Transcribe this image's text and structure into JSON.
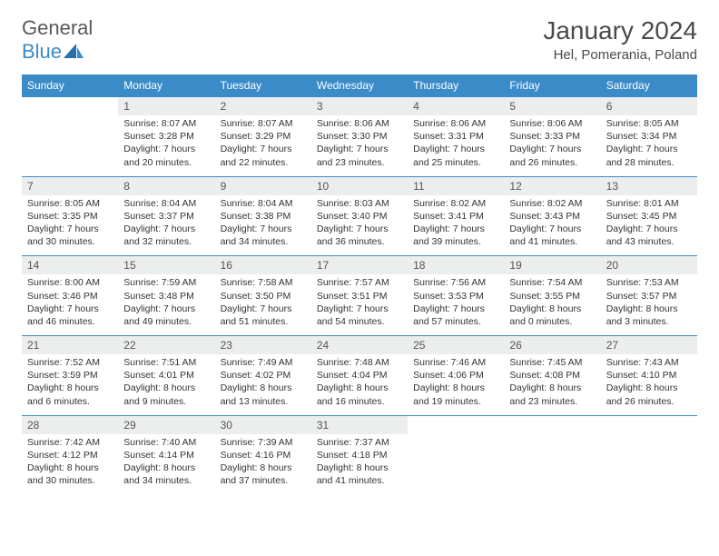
{
  "logo": {
    "word1": "General",
    "word2": "Blue"
  },
  "title": "January 2024",
  "location": "Hel, Pomerania, Poland",
  "colors": {
    "header_bg": "#3b8bc9",
    "header_text": "#ffffff",
    "daynum_bg": "#eceded",
    "border": "#3b8bc9",
    "logo_gray": "#58595b",
    "logo_blue": "#3b8bc9"
  },
  "days_of_week": [
    "Sunday",
    "Monday",
    "Tuesday",
    "Wednesday",
    "Thursday",
    "Friday",
    "Saturday"
  ],
  "weeks": [
    [
      {
        "n": "",
        "sr": "",
        "ss": "",
        "dl": ""
      },
      {
        "n": "1",
        "sr": "Sunrise: 8:07 AM",
        "ss": "Sunset: 3:28 PM",
        "dl": "Daylight: 7 hours and 20 minutes."
      },
      {
        "n": "2",
        "sr": "Sunrise: 8:07 AM",
        "ss": "Sunset: 3:29 PM",
        "dl": "Daylight: 7 hours and 22 minutes."
      },
      {
        "n": "3",
        "sr": "Sunrise: 8:06 AM",
        "ss": "Sunset: 3:30 PM",
        "dl": "Daylight: 7 hours and 23 minutes."
      },
      {
        "n": "4",
        "sr": "Sunrise: 8:06 AM",
        "ss": "Sunset: 3:31 PM",
        "dl": "Daylight: 7 hours and 25 minutes."
      },
      {
        "n": "5",
        "sr": "Sunrise: 8:06 AM",
        "ss": "Sunset: 3:33 PM",
        "dl": "Daylight: 7 hours and 26 minutes."
      },
      {
        "n": "6",
        "sr": "Sunrise: 8:05 AM",
        "ss": "Sunset: 3:34 PM",
        "dl": "Daylight: 7 hours and 28 minutes."
      }
    ],
    [
      {
        "n": "7",
        "sr": "Sunrise: 8:05 AM",
        "ss": "Sunset: 3:35 PM",
        "dl": "Daylight: 7 hours and 30 minutes."
      },
      {
        "n": "8",
        "sr": "Sunrise: 8:04 AM",
        "ss": "Sunset: 3:37 PM",
        "dl": "Daylight: 7 hours and 32 minutes."
      },
      {
        "n": "9",
        "sr": "Sunrise: 8:04 AM",
        "ss": "Sunset: 3:38 PM",
        "dl": "Daylight: 7 hours and 34 minutes."
      },
      {
        "n": "10",
        "sr": "Sunrise: 8:03 AM",
        "ss": "Sunset: 3:40 PM",
        "dl": "Daylight: 7 hours and 36 minutes."
      },
      {
        "n": "11",
        "sr": "Sunrise: 8:02 AM",
        "ss": "Sunset: 3:41 PM",
        "dl": "Daylight: 7 hours and 39 minutes."
      },
      {
        "n": "12",
        "sr": "Sunrise: 8:02 AM",
        "ss": "Sunset: 3:43 PM",
        "dl": "Daylight: 7 hours and 41 minutes."
      },
      {
        "n": "13",
        "sr": "Sunrise: 8:01 AM",
        "ss": "Sunset: 3:45 PM",
        "dl": "Daylight: 7 hours and 43 minutes."
      }
    ],
    [
      {
        "n": "14",
        "sr": "Sunrise: 8:00 AM",
        "ss": "Sunset: 3:46 PM",
        "dl": "Daylight: 7 hours and 46 minutes."
      },
      {
        "n": "15",
        "sr": "Sunrise: 7:59 AM",
        "ss": "Sunset: 3:48 PM",
        "dl": "Daylight: 7 hours and 49 minutes."
      },
      {
        "n": "16",
        "sr": "Sunrise: 7:58 AM",
        "ss": "Sunset: 3:50 PM",
        "dl": "Daylight: 7 hours and 51 minutes."
      },
      {
        "n": "17",
        "sr": "Sunrise: 7:57 AM",
        "ss": "Sunset: 3:51 PM",
        "dl": "Daylight: 7 hours and 54 minutes."
      },
      {
        "n": "18",
        "sr": "Sunrise: 7:56 AM",
        "ss": "Sunset: 3:53 PM",
        "dl": "Daylight: 7 hours and 57 minutes."
      },
      {
        "n": "19",
        "sr": "Sunrise: 7:54 AM",
        "ss": "Sunset: 3:55 PM",
        "dl": "Daylight: 8 hours and 0 minutes."
      },
      {
        "n": "20",
        "sr": "Sunrise: 7:53 AM",
        "ss": "Sunset: 3:57 PM",
        "dl": "Daylight: 8 hours and 3 minutes."
      }
    ],
    [
      {
        "n": "21",
        "sr": "Sunrise: 7:52 AM",
        "ss": "Sunset: 3:59 PM",
        "dl": "Daylight: 8 hours and 6 minutes."
      },
      {
        "n": "22",
        "sr": "Sunrise: 7:51 AM",
        "ss": "Sunset: 4:01 PM",
        "dl": "Daylight: 8 hours and 9 minutes."
      },
      {
        "n": "23",
        "sr": "Sunrise: 7:49 AM",
        "ss": "Sunset: 4:02 PM",
        "dl": "Daylight: 8 hours and 13 minutes."
      },
      {
        "n": "24",
        "sr": "Sunrise: 7:48 AM",
        "ss": "Sunset: 4:04 PM",
        "dl": "Daylight: 8 hours and 16 minutes."
      },
      {
        "n": "25",
        "sr": "Sunrise: 7:46 AM",
        "ss": "Sunset: 4:06 PM",
        "dl": "Daylight: 8 hours and 19 minutes."
      },
      {
        "n": "26",
        "sr": "Sunrise: 7:45 AM",
        "ss": "Sunset: 4:08 PM",
        "dl": "Daylight: 8 hours and 23 minutes."
      },
      {
        "n": "27",
        "sr": "Sunrise: 7:43 AM",
        "ss": "Sunset: 4:10 PM",
        "dl": "Daylight: 8 hours and 26 minutes."
      }
    ],
    [
      {
        "n": "28",
        "sr": "Sunrise: 7:42 AM",
        "ss": "Sunset: 4:12 PM",
        "dl": "Daylight: 8 hours and 30 minutes."
      },
      {
        "n": "29",
        "sr": "Sunrise: 7:40 AM",
        "ss": "Sunset: 4:14 PM",
        "dl": "Daylight: 8 hours and 34 minutes."
      },
      {
        "n": "30",
        "sr": "Sunrise: 7:39 AM",
        "ss": "Sunset: 4:16 PM",
        "dl": "Daylight: 8 hours and 37 minutes."
      },
      {
        "n": "31",
        "sr": "Sunrise: 7:37 AM",
        "ss": "Sunset: 4:18 PM",
        "dl": "Daylight: 8 hours and 41 minutes."
      },
      {
        "n": "",
        "sr": "",
        "ss": "",
        "dl": ""
      },
      {
        "n": "",
        "sr": "",
        "ss": "",
        "dl": ""
      },
      {
        "n": "",
        "sr": "",
        "ss": "",
        "dl": ""
      }
    ]
  ]
}
